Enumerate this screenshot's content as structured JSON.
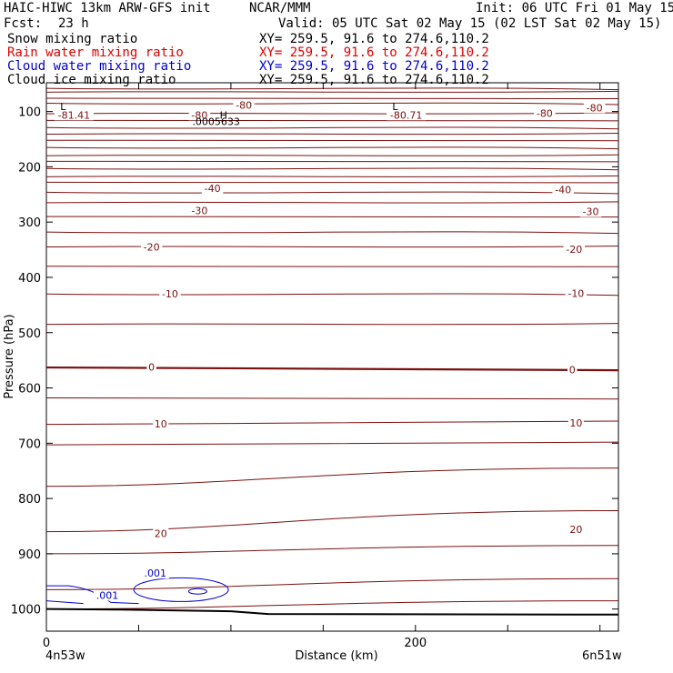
{
  "header": {
    "title_left": "HAIC-HIWC 13km ARW-GFS init",
    "title_center": "NCAR/MMM",
    "init": "Init: 06 UTC Fri 01 May 15",
    "fcst_label": "Fcst:",
    "fcst_value": "23 h",
    "valid": "Valid: 05 UTC Sat 02 May 15 (02 LST Sat 02 May 15)"
  },
  "fields": [
    {
      "name": "Snow mixing ratio",
      "xy": "XY= 259.5, 91.6 to 274.6,110.2",
      "color": "#000000"
    },
    {
      "name": "Rain water mixing ratio",
      "xy": "XY= 259.5, 91.6 to 274.6,110.2",
      "color": "#e00000"
    },
    {
      "name": "Cloud water mixing ratio",
      "xy": "XY= 259.5, 91.6 to 274.6,110.2",
      "color": "#0000d0"
    },
    {
      "name": "Cloud ice mixing ratio",
      "xy": "XY= 259.5, 91.6 to 274.6,110.2",
      "color": "#000000"
    }
  ],
  "chart_data": {
    "type": "line",
    "xlabel": "Distance (km)",
    "ylabel": "Pressure (hPa)",
    "xlim": [
      0,
      310
    ],
    "ylim": [
      1040,
      48
    ],
    "x_ticks": [
      0,
      200
    ],
    "y_ticks": [
      100,
      200,
      300,
      400,
      500,
      600,
      700,
      800,
      900,
      1000
    ],
    "x_endpoints": {
      "left": "4n53w",
      "right": "6n51w"
    },
    "temperature_color": "#7a1010",
    "cloud_water_color": "#0000d0",
    "temperature_labels": [
      {
        "text": "-81.41",
        "x": 15,
        "p": 106
      },
      {
        "text": "-80",
        "x": 107,
        "p": 88
      },
      {
        "text": "-80",
        "x": 83,
        "p": 106
      },
      {
        "text": "-80.71",
        "x": 195,
        "p": 106
      },
      {
        "text": "-80",
        "x": 270,
        "p": 103
      },
      {
        "text": "-80",
        "x": 297,
        "p": 93
      },
      {
        "text": "L",
        "x": 9,
        "p": 91
      },
      {
        "text": "L",
        "x": 189,
        "p": 91
      },
      {
        "text": "H",
        "x": 96,
        "p": 106
      },
      {
        "text": ".0005633",
        "x": 92,
        "p": 118
      },
      {
        "text": "-40",
        "x": 90,
        "p": 239
      },
      {
        "text": "-40",
        "x": 280,
        "p": 241
      },
      {
        "text": "-30",
        "x": 83,
        "p": 279
      },
      {
        "text": "-30",
        "x": 295,
        "p": 281
      },
      {
        "text": "-20",
        "x": 57,
        "p": 345
      },
      {
        "text": "-20",
        "x": 286,
        "p": 349
      },
      {
        "text": "-10",
        "x": 67,
        "p": 430
      },
      {
        "text": "-10",
        "x": 287,
        "p": 429
      },
      {
        "text": "0",
        "x": 57,
        "p": 562
      },
      {
        "text": "0",
        "x": 285,
        "p": 567
      },
      {
        "text": "10",
        "x": 62,
        "p": 665
      },
      {
        "text": "10",
        "x": 287,
        "p": 663
      },
      {
        "text": "20",
        "x": 62,
        "p": 863
      },
      {
        "text": "20",
        "x": 287,
        "p": 856
      },
      {
        "text": ".001",
        "x": 33,
        "p": 975
      },
      {
        "text": ".001",
        "x": 59,
        "p": 935
      }
    ]
  }
}
